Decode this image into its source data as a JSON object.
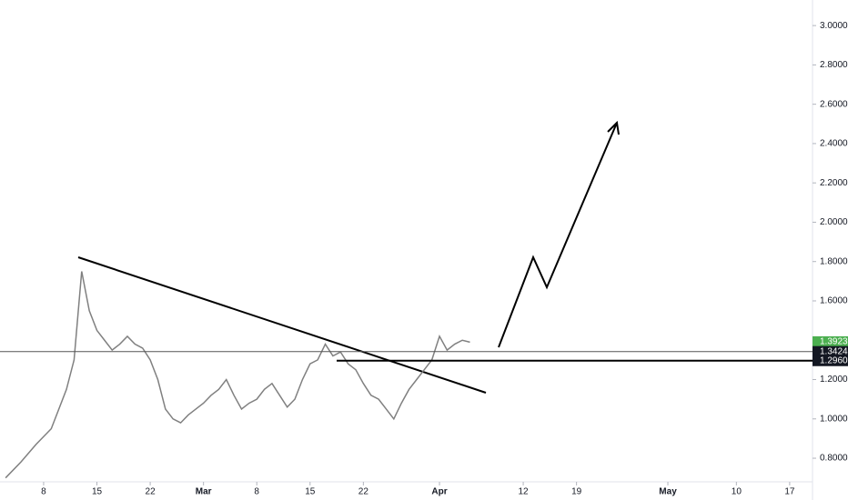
{
  "chart_data": {
    "type": "line",
    "color": "#808080",
    "x": [
      2,
      4,
      6,
      8,
      9,
      10,
      11,
      12,
      13,
      14,
      15,
      16,
      17,
      18,
      19,
      20,
      21,
      22,
      23,
      24,
      25,
      26,
      27,
      28,
      29,
      30,
      31,
      32,
      33,
      34,
      35,
      36,
      37,
      38,
      39,
      40,
      41,
      42,
      43,
      44,
      45,
      46,
      47,
      48,
      49,
      50,
      51,
      52,
      53,
      54,
      55,
      56,
      57,
      58,
      59,
      60,
      61,
      62,
      63
    ],
    "values": [
      0.7,
      0.78,
      0.87,
      0.95,
      1.05,
      1.15,
      1.3,
      1.75,
      1.55,
      1.45,
      1.4,
      1.35,
      1.38,
      1.42,
      1.38,
      1.36,
      1.3,
      1.2,
      1.05,
      1.0,
      0.98,
      1.02,
      1.05,
      1.08,
      1.12,
      1.15,
      1.2,
      1.12,
      1.05,
      1.08,
      1.1,
      1.15,
      1.18,
      1.12,
      1.06,
      1.1,
      1.2,
      1.28,
      1.3,
      1.38,
      1.32,
      1.34,
      1.28,
      1.25,
      1.18,
      1.12,
      1.1,
      1.05,
      1.0,
      1.08,
      1.15,
      1.2,
      1.25,
      1.3,
      1.42,
      1.35,
      1.38,
      1.4,
      1.39
    ],
    "xlim": [
      1.27,
      108
    ],
    "xticks": [
      {
        "value": 7,
        "label": "8"
      },
      {
        "value": 14,
        "label": "15"
      },
      {
        "value": 21,
        "label": "22"
      },
      {
        "value": 28,
        "label": "Mar"
      },
      {
        "value": 35,
        "label": "8"
      },
      {
        "value": 42,
        "label": "15"
      },
      {
        "value": 49,
        "label": "22"
      },
      {
        "value": 59,
        "label": "Apr"
      },
      {
        "value": 70,
        "label": "12"
      },
      {
        "value": 77,
        "label": "19"
      },
      {
        "value": 89,
        "label": "May"
      },
      {
        "value": 98,
        "label": "10"
      },
      {
        "value": 105,
        "label": "17"
      }
    ],
    "ylim": [
      0.68,
      3.13
    ],
    "yticks": [
      {
        "value": 0.8,
        "label": "0.8000"
      },
      {
        "value": 1.0,
        "label": "1.0000"
      },
      {
        "value": 1.2,
        "label": "1.2000"
      },
      {
        "value": 1.4,
        "label": "1.4000"
      },
      {
        "value": 1.6,
        "label": "1.6000"
      },
      {
        "value": 1.8,
        "label": "1.8000"
      },
      {
        "value": 2.0,
        "label": "2.0000"
      },
      {
        "value": 2.2,
        "label": "2.2000"
      },
      {
        "value": 2.4,
        "label": "2.4000"
      },
      {
        "value": 2.6,
        "label": "2.6000"
      },
      {
        "value": 2.8,
        "label": "2.8000"
      },
      {
        "value": 3.0,
        "label": "3.0000"
      }
    ],
    "price_labels": [
      {
        "value": 1.3923,
        "label": "1.3923",
        "color": "#4caf50"
      },
      {
        "value": 1.3424,
        "label": "1.3424",
        "color": "#131722"
      },
      {
        "value": 1.296,
        "label": "1.2960",
        "color": "#131722"
      }
    ]
  }
}
